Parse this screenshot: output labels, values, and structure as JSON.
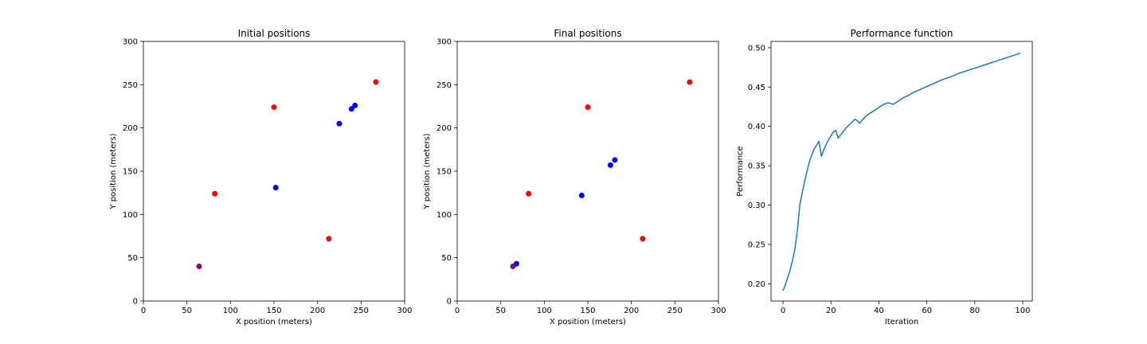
{
  "chart_data": [
    {
      "type": "scatter",
      "title": "Initial positions",
      "xlabel": "X position (meters)",
      "ylabel": "Y position (meters)",
      "xlim": [
        0,
        300
      ],
      "ylim": [
        0,
        300
      ],
      "xticks": [
        0,
        50,
        100,
        150,
        200,
        250,
        300
      ],
      "yticks": [
        0,
        50,
        100,
        150,
        200,
        250,
        300
      ],
      "grid": false,
      "series": [
        {
          "color": "#ff0000",
          "points": [
            [
              82,
              124
            ],
            [
              150,
              224
            ],
            [
              213,
              72
            ],
            [
              267,
              253
            ]
          ]
        },
        {
          "color": "#0000ff",
          "points": [
            [
              152,
              131
            ],
            [
              225,
              205
            ],
            [
              239,
              222
            ],
            [
              243,
              226
            ]
          ]
        },
        {
          "color": "#800080",
          "points": [
            [
              64,
              40
            ]
          ]
        }
      ]
    },
    {
      "type": "scatter",
      "title": "Final positions",
      "xlabel": "X position (meters)",
      "ylabel": "Y position (meters)",
      "xlim": [
        0,
        300
      ],
      "ylim": [
        0,
        300
      ],
      "xticks": [
        0,
        50,
        100,
        150,
        200,
        250,
        300
      ],
      "yticks": [
        0,
        50,
        100,
        150,
        200,
        250,
        300
      ],
      "grid": false,
      "series": [
        {
          "color": "#ff0000",
          "points": [
            [
              82,
              124
            ],
            [
              150,
              224
            ],
            [
              213,
              72
            ],
            [
              267,
              253
            ]
          ]
        },
        {
          "color": "#0000ff",
          "points": [
            [
              68,
              43
            ],
            [
              143,
              122
            ],
            [
              176,
              157
            ],
            [
              181,
              163
            ]
          ]
        },
        {
          "color": "#800080",
          "points": [
            [
              64,
              40
            ]
          ]
        }
      ]
    },
    {
      "type": "line",
      "title": "Performance function",
      "xlabel": "Iteration",
      "ylabel": "Performance",
      "xlim": [
        -5,
        104
      ],
      "ylim": [
        0.178,
        0.508
      ],
      "xticks": [
        0,
        20,
        40,
        60,
        80,
        100
      ],
      "yticks": [
        0.2,
        0.25,
        0.3,
        0.35,
        0.4,
        0.45,
        0.5
      ],
      "ytick_labels": [
        "0.20",
        "0.25",
        "0.30",
        "0.35",
        "0.40",
        "0.45",
        "0.50"
      ],
      "grid": false,
      "series": [
        {
          "color": "#1f77b4",
          "x": [
            0,
            1,
            2,
            3,
            4,
            5,
            6,
            7,
            8,
            9,
            10,
            11,
            12,
            13,
            14,
            15,
            16,
            17,
            18,
            19,
            20,
            21,
            22,
            23,
            24,
            25,
            26,
            27,
            28,
            29,
            30,
            31,
            32,
            33,
            34,
            35,
            36,
            37,
            38,
            39,
            40,
            41,
            42,
            43,
            44,
            45,
            46,
            47,
            48,
            50,
            52,
            55,
            58,
            61,
            64,
            67,
            70,
            73,
            76,
            79,
            82,
            85,
            88,
            91,
            94,
            97,
            99
          ],
          "y": [
            0.191,
            0.199,
            0.208,
            0.218,
            0.23,
            0.245,
            0.268,
            0.3,
            0.315,
            0.33,
            0.343,
            0.355,
            0.364,
            0.371,
            0.376,
            0.381,
            0.362,
            0.37,
            0.377,
            0.383,
            0.388,
            0.393,
            0.395,
            0.385,
            0.389,
            0.393,
            0.397,
            0.4,
            0.403,
            0.406,
            0.409,
            0.407,
            0.404,
            0.408,
            0.411,
            0.414,
            0.416,
            0.418,
            0.42,
            0.422,
            0.424,
            0.426,
            0.428,
            0.429,
            0.43,
            0.429,
            0.428,
            0.43,
            0.432,
            0.436,
            0.439,
            0.444,
            0.448,
            0.452,
            0.456,
            0.46,
            0.463,
            0.467,
            0.47,
            0.473,
            0.476,
            0.479,
            0.482,
            0.485,
            0.488,
            0.491,
            0.493
          ]
        }
      ]
    }
  ]
}
